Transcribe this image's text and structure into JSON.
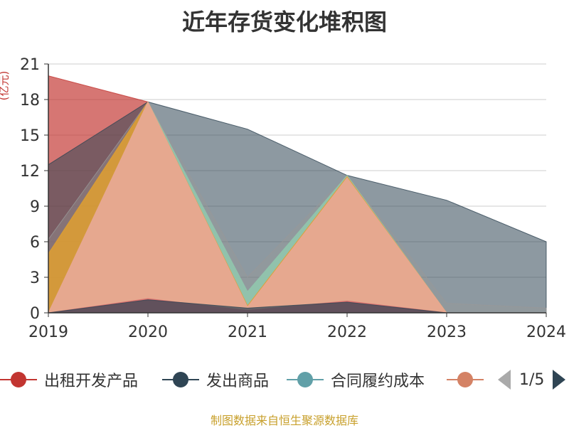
{
  "title": "近年存货变化堆积图",
  "unit_label": "亿元",
  "source": "制图数据来自恒生聚源数据库",
  "legend": {
    "items": [
      {
        "label": "出租开发产品",
        "color": "#c23531"
      },
      {
        "label": "发出商品",
        "color": "#2f4554"
      },
      {
        "label": "合同履约成本",
        "color": "#61a0a8"
      },
      {
        "label": "",
        "color": "#d48265"
      }
    ],
    "page_text": "1/5"
  },
  "chart_data": {
    "type": "area",
    "stacked": false,
    "x": [
      "2019",
      "2020",
      "2021",
      "2022",
      "2023",
      "2024"
    ],
    "ylim": [
      0,
      21
    ],
    "yticks": [
      0,
      3,
      6,
      9,
      12,
      15,
      18,
      21
    ],
    "grid": true,
    "series": [
      {
        "color": "#c23531",
        "opacity": 0.68,
        "values": [
          20.0,
          17.8,
          0.4,
          1.0,
          0.0,
          0.0
        ]
      },
      {
        "color": "#2f4554",
        "opacity": 0.55,
        "values": [
          12.5,
          17.8,
          15.5,
          11.6,
          9.5,
          6.0
        ]
      },
      {
        "color": "#999999",
        "opacity": 0.4,
        "values": [
          6.2,
          17.8,
          3.0,
          11.6,
          0.8,
          0.4
        ]
      },
      {
        "color": "#91c7ae",
        "opacity": 0.9,
        "values": [
          0.0,
          17.8,
          1.8,
          11.6,
          0.0,
          0.0
        ]
      },
      {
        "color": "#e0a030",
        "opacity": 0.85,
        "values": [
          5.0,
          17.8,
          0.6,
          11.5,
          0.0,
          0.0
        ]
      },
      {
        "color": "#e8a898",
        "opacity": 0.9,
        "values": [
          0.0,
          17.8,
          0.5,
          11.4,
          0.0,
          0.0
        ]
      },
      {
        "color": "#d46a6a",
        "opacity": 0.9,
        "values": [
          0.0,
          1.2,
          0.2,
          1.0,
          0.0,
          0.0
        ]
      },
      {
        "color": "#2f4554",
        "opacity": 0.7,
        "values": [
          0.0,
          1.1,
          0.4,
          0.9,
          0.0,
          0.0
        ]
      }
    ]
  }
}
